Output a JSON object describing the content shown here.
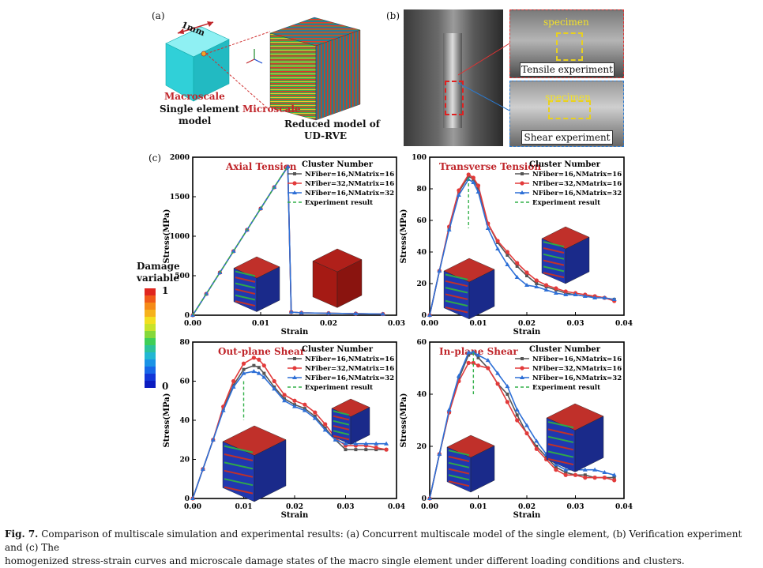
{
  "panel_a": {
    "letter": "(a)",
    "dimension": "1mm",
    "macroscale": "Macroscale",
    "single_element_line1": "Single element",
    "single_element_line2": "model",
    "microscale": "Microscale",
    "reduced_line1": "Reduced model of",
    "reduced_line2": "UD-RVE",
    "axes": {
      "z": "z",
      "y": "y",
      "x": "x"
    }
  },
  "panel_b": {
    "letter": "(b)",
    "specimen_top": "specimen",
    "specimen_bottom": "specimen",
    "tensile_label": "Tensile experiment",
    "shear_label": "Shear experiment"
  },
  "panel_c": {
    "letter": "(c)"
  },
  "damage_legend": {
    "title_line1": "Damage",
    "title_line2": "variable",
    "max": "1",
    "min": "0",
    "colors": [
      "#e0261f",
      "#f05a19",
      "#f58b18",
      "#f6b21c",
      "#f2df20",
      "#c8e32a",
      "#85d83a",
      "#3fcf57",
      "#2cc39a",
      "#22b7d3",
      "#1a93e6",
      "#1767e8",
      "#1236d8",
      "#0b1cc0"
    ]
  },
  "colors": {
    "series1": "#555555",
    "series2": "#e23b3b",
    "series3": "#2d6fd6",
    "experiment": "#33b04a",
    "title_red": "#c0262b",
    "cube_cyan": "#30d0d8"
  },
  "legend_common": {
    "title": "Cluster Number",
    "s1": "NFiber=16,NMatrix=16",
    "s2": "NFiber=32,NMatrix=16",
    "s3": "NFiber=16,NMatrix=32",
    "exp": "Experiment result"
  },
  "chart_data": [
    {
      "type": "line",
      "title": "Axial Tension",
      "xlabel": "Strain",
      "ylabel": "Stress(MPa)",
      "xlim": [
        0,
        0.03
      ],
      "ylim": [
        0,
        2000
      ],
      "xticks": [
        "0.00",
        "0.01",
        "0.02",
        "0.03"
      ],
      "yticks": [
        "0",
        "500",
        "1000",
        "1500",
        "2000"
      ],
      "series": [
        {
          "name": "NFiber=16,NMatrix=16",
          "x": [
            0,
            0.002,
            0.004,
            0.006,
            0.008,
            0.01,
            0.012,
            0.014,
            0.0145,
            0.016,
            0.02,
            0.024,
            0.028
          ],
          "y": [
            0,
            270,
            540,
            810,
            1080,
            1350,
            1620,
            1880,
            40,
            30,
            25,
            20,
            15
          ]
        },
        {
          "name": "NFiber=32,NMatrix=16",
          "x": [
            0,
            0.002,
            0.004,
            0.006,
            0.008,
            0.01,
            0.012,
            0.014,
            0.0145,
            0.016,
            0.02,
            0.024,
            0.028
          ],
          "y": [
            0,
            270,
            540,
            810,
            1080,
            1350,
            1620,
            1880,
            40,
            30,
            25,
            20,
            15
          ]
        },
        {
          "name": "NFiber=16,NMatrix=32",
          "x": [
            0,
            0.002,
            0.004,
            0.006,
            0.008,
            0.01,
            0.012,
            0.014,
            0.0145,
            0.016,
            0.02,
            0.024,
            0.028
          ],
          "y": [
            0,
            270,
            540,
            810,
            1080,
            1350,
            1620,
            1880,
            40,
            30,
            25,
            20,
            15
          ]
        },
        {
          "name": "Experiment result",
          "x": [
            0,
            0.014
          ],
          "y": [
            0,
            1890
          ]
        }
      ]
    },
    {
      "type": "line",
      "title": "Transverse Tension",
      "xlabel": "Strain",
      "ylabel": "Stress(MPa)",
      "xlim": [
        0,
        0.04
      ],
      "ylim": [
        0,
        100
      ],
      "xticks": [
        "0.00",
        "0.01",
        "0.02",
        "0.03",
        "0.04"
      ],
      "yticks": [
        "0",
        "20",
        "40",
        "60",
        "80",
        "100"
      ],
      "series": [
        {
          "name": "NFiber=16,NMatrix=16",
          "x": [
            0,
            0.002,
            0.004,
            0.006,
            0.008,
            0.009,
            0.01,
            0.012,
            0.014,
            0.016,
            0.018,
            0.02,
            0.022,
            0.024,
            0.026,
            0.028,
            0.03,
            0.032,
            0.034,
            0.036,
            0.038
          ],
          "y": [
            0,
            28,
            55,
            78,
            88,
            86,
            80,
            58,
            46,
            38,
            31,
            25,
            20,
            18,
            16,
            14,
            13,
            12,
            12,
            11,
            10
          ]
        },
        {
          "name": "NFiber=32,NMatrix=16",
          "x": [
            0,
            0.002,
            0.004,
            0.006,
            0.008,
            0.009,
            0.01,
            0.012,
            0.014,
            0.016,
            0.018,
            0.02,
            0.022,
            0.024,
            0.026,
            0.028,
            0.03,
            0.032,
            0.034,
            0.036,
            0.038
          ],
          "y": [
            0,
            28,
            56,
            79,
            89,
            87,
            82,
            58,
            47,
            40,
            33,
            27,
            22,
            19,
            17,
            15,
            14,
            13,
            12,
            11,
            9
          ]
        },
        {
          "name": "NFiber=16,NMatrix=32",
          "x": [
            0,
            0.002,
            0.004,
            0.006,
            0.008,
            0.009,
            0.01,
            0.012,
            0.014,
            0.016,
            0.018,
            0.02,
            0.022,
            0.024,
            0.026,
            0.028,
            0.03,
            0.032,
            0.034,
            0.036,
            0.038
          ],
          "y": [
            0,
            28,
            54,
            76,
            86,
            84,
            78,
            55,
            42,
            32,
            24,
            19,
            18,
            16,
            14,
            13,
            13,
            12,
            11,
            11,
            10
          ]
        },
        {
          "name": "Experiment result",
          "x": [
            0.008,
            0.008
          ],
          "y": [
            87,
            55
          ]
        }
      ]
    },
    {
      "type": "line",
      "title": "Out-plane Shear",
      "xlabel": "Strain",
      "ylabel": "Stress(MPa)",
      "xlim": [
        0,
        0.04
      ],
      "ylim": [
        0,
        80
      ],
      "xticks": [
        "0.00",
        "0.01",
        "0.02",
        "0.03",
        "0.04"
      ],
      "yticks": [
        "0",
        "20",
        "40",
        "60",
        "80"
      ],
      "series": [
        {
          "name": "NFiber=16,NMatrix=16",
          "x": [
            0,
            0.002,
            0.004,
            0.006,
            0.008,
            0.01,
            0.012,
            0.013,
            0.014,
            0.016,
            0.018,
            0.02,
            0.022,
            0.024,
            0.026,
            0.028,
            0.03,
            0.032,
            0.034,
            0.036,
            0.038
          ],
          "y": [
            0,
            15,
            30,
            46,
            58,
            66,
            68,
            67,
            64,
            57,
            51,
            48,
            46,
            42,
            36,
            30,
            25,
            25,
            25,
            25,
            25
          ]
        },
        {
          "name": "NFiber=32,NMatrix=16",
          "x": [
            0,
            0.002,
            0.004,
            0.006,
            0.008,
            0.01,
            0.012,
            0.013,
            0.014,
            0.016,
            0.018,
            0.02,
            0.022,
            0.024,
            0.026,
            0.028,
            0.03,
            0.032,
            0.034,
            0.036,
            0.038
          ],
          "y": [
            0,
            15,
            30,
            47,
            60,
            69,
            72,
            71,
            68,
            60,
            53,
            50,
            48,
            44,
            38,
            31,
            27,
            27,
            27,
            26,
            25
          ]
        },
        {
          "name": "NFiber=16,NMatrix=32",
          "x": [
            0,
            0.002,
            0.004,
            0.006,
            0.008,
            0.01,
            0.012,
            0.013,
            0.014,
            0.016,
            0.018,
            0.02,
            0.022,
            0.024,
            0.026,
            0.028,
            0.03,
            0.032,
            0.034,
            0.036,
            0.038
          ],
          "y": [
            0,
            15,
            30,
            45,
            57,
            64,
            65,
            64,
            62,
            56,
            50,
            47,
            45,
            41,
            35,
            30,
            28,
            28,
            28,
            28,
            28
          ]
        },
        {
          "name": "Experiment result",
          "x": [
            0.01,
            0.01
          ],
          "y": [
            60,
            40
          ]
        }
      ]
    },
    {
      "type": "line",
      "title": "In-plane Shear",
      "xlabel": "Strain",
      "ylabel": "Stress(MPa)",
      "xlim": [
        0,
        0.04
      ],
      "ylim": [
        0,
        60
      ],
      "xticks": [
        "0.00",
        "0.01",
        "0.02",
        "0.03",
        "0.04"
      ],
      "yticks": [
        "0",
        "20",
        "40",
        "60"
      ],
      "series": [
        {
          "name": "NFiber=16,NMatrix=16",
          "x": [
            0,
            0.002,
            0.004,
            0.006,
            0.008,
            0.009,
            0.01,
            0.012,
            0.014,
            0.016,
            0.018,
            0.02,
            0.022,
            0.024,
            0.026,
            0.028,
            0.03,
            0.032,
            0.034,
            0.036,
            0.038
          ],
          "y": [
            0,
            17,
            33,
            46,
            55,
            56,
            54,
            50,
            44,
            40,
            32,
            25,
            20,
            16,
            12,
            10,
            9,
            9,
            8,
            8,
            8
          ]
        },
        {
          "name": "NFiber=32,NMatrix=16",
          "x": [
            0,
            0.002,
            0.004,
            0.006,
            0.008,
            0.009,
            0.01,
            0.012,
            0.014,
            0.016,
            0.018,
            0.02,
            0.022,
            0.024,
            0.026,
            0.028,
            0.03,
            0.032,
            0.034,
            0.036,
            0.038
          ],
          "y": [
            0,
            17,
            33,
            45,
            52,
            52,
            51,
            50,
            44,
            37,
            30,
            25,
            19,
            15,
            11,
            9,
            9,
            8,
            8,
            8,
            7
          ]
        },
        {
          "name": "NFiber=16,NMatrix=32",
          "x": [
            0,
            0.002,
            0.004,
            0.006,
            0.008,
            0.009,
            0.01,
            0.012,
            0.014,
            0.016,
            0.018,
            0.02,
            0.022,
            0.024,
            0.026,
            0.028,
            0.03,
            0.032,
            0.034,
            0.036,
            0.038
          ],
          "y": [
            0,
            17,
            34,
            47,
            56,
            56,
            55,
            53,
            48,
            43,
            34,
            28,
            22,
            17,
            13,
            11,
            11,
            11,
            11,
            10,
            9
          ]
        },
        {
          "name": "Experiment result",
          "x": [
            0.009,
            0.009
          ],
          "y": [
            56,
            40
          ]
        }
      ]
    }
  ],
  "caption": {
    "fig_label": "Fig. 7.",
    "line1": "Comparison of multiscale simulation and experimental results: (a) Concurrent multiscale model of the single element, (b) Verification experiment and (c) The",
    "line2": "homogenized stress-strain curves and microscale damage states of the macro single element under different loading conditions and clusters."
  }
}
